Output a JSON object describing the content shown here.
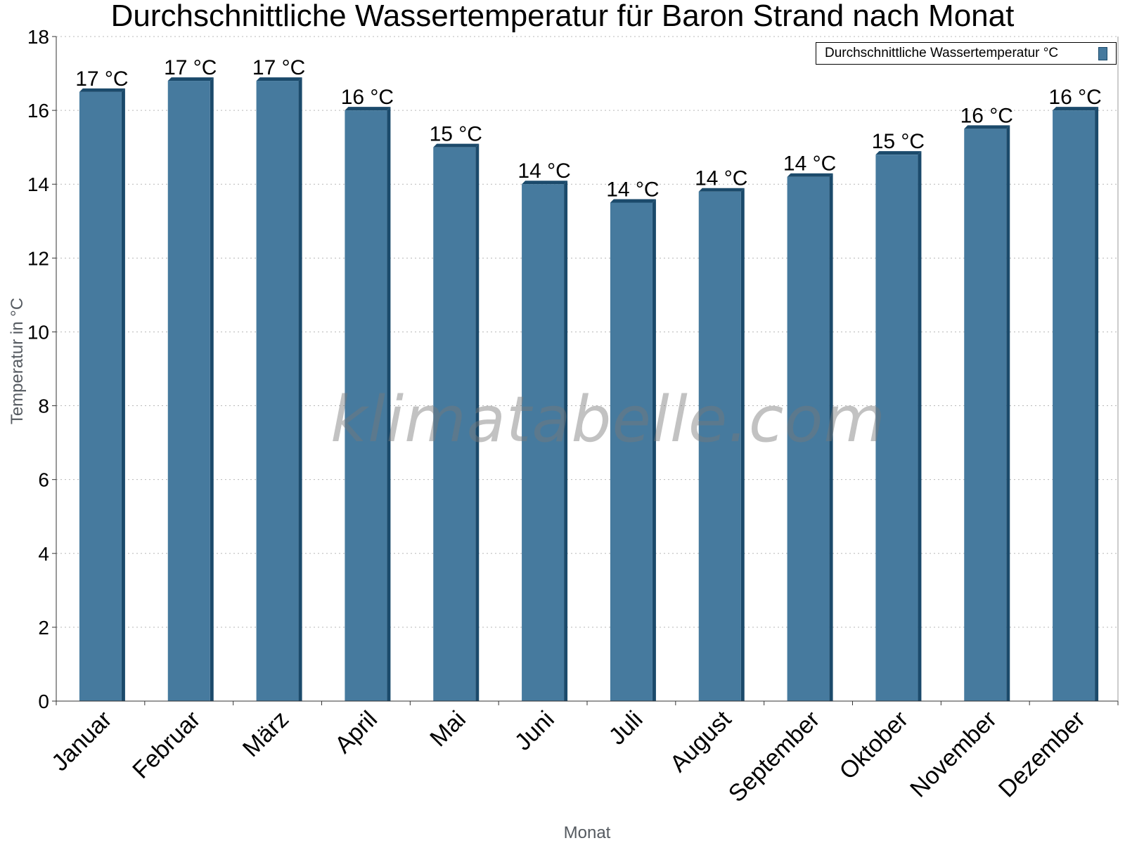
{
  "chart_data": {
    "type": "bar",
    "title": "Durchschnittliche Wassertemperatur für Baron Strand nach Monat",
    "xlabel": "Monat",
    "ylabel": "Temperatur in °C",
    "ylim": [
      0,
      18
    ],
    "yticks": [
      0,
      2,
      4,
      6,
      8,
      10,
      12,
      14,
      16,
      18
    ],
    "grid": "horizontal-dotted",
    "legend_position": "top-right",
    "categories": [
      "Januar",
      "Februar",
      "März",
      "April",
      "Mai",
      "Juni",
      "Juli",
      "August",
      "September",
      "Oktober",
      "November",
      "Dezember"
    ],
    "series": [
      {
        "name": "Durchschnittliche Wassertemperatur °C",
        "values": [
          16.5,
          16.8,
          16.8,
          16.0,
          15.0,
          14.0,
          13.5,
          13.8,
          14.2,
          14.8,
          15.5,
          16.0
        ],
        "data_labels": [
          "17 °C",
          "17 °C",
          "17 °C",
          "16 °C",
          "15 °C",
          "14 °C",
          "14 °C",
          "14 °C",
          "14 °C",
          "15 °C",
          "16 °C",
          "16 °C"
        ],
        "color": "#467a9e",
        "edge_color": "#1b4a6b"
      }
    ]
  },
  "watermark": "klimatabelle.com"
}
